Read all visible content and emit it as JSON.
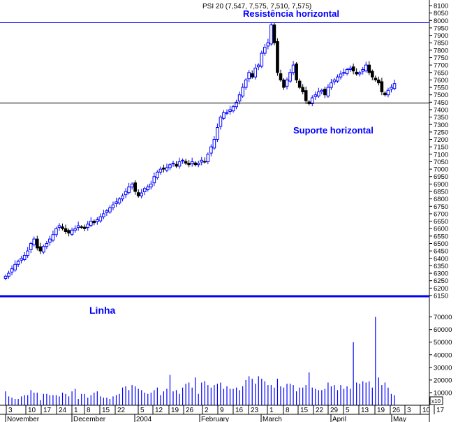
{
  "chart_data": {
    "type": "candlestick",
    "title": "PSI 20 (7,547, 7,575, 7,510, 7,575)",
    "annotations": [
      {
        "text": "Resistência horizontal",
        "value": 7985
      },
      {
        "text": "Suporte horizontal",
        "value": 7445
      },
      {
        "text": "Linha"
      }
    ],
    "price_axis": {
      "ylim": [
        6150,
        8100
      ],
      "ticks": [
        6150,
        6200,
        6250,
        6300,
        6350,
        6400,
        6450,
        6500,
        6550,
        6600,
        6650,
        6700,
        6750,
        6800,
        6850,
        6900,
        6950,
        7000,
        7050,
        7100,
        7150,
        7200,
        7250,
        7300,
        7350,
        7400,
        7450,
        7500,
        7550,
        7600,
        7650,
        7700,
        7750,
        7800,
        7850,
        7900,
        7950,
        8000,
        8050,
        8100
      ]
    },
    "volume_axis": {
      "ylim": [
        0,
        72000
      ],
      "ticks": [
        10000,
        20000,
        30000,
        40000,
        50000,
        60000,
        70000
      ],
      "multiplier_label": "x10"
    },
    "close": [
      6280,
      6300,
      6330,
      6360,
      6380,
      6400,
      6420,
      6450,
      6500,
      6530,
      6470,
      6450,
      6480,
      6500,
      6530,
      6560,
      6600,
      6620,
      6600,
      6580,
      6570,
      6590,
      6600,
      6620,
      6610,
      6600,
      6630,
      6650,
      6640,
      6660,
      6680,
      6700,
      6720,
      6740,
      6760,
      6780,
      6800,
      6820,
      6850,
      6880,
      6900,
      6850,
      6820,
      6840,
      6870,
      6880,
      6900,
      6950,
      6980,
      7000,
      7000,
      7010,
      7030,
      7040,
      7020,
      7050,
      7060,
      7040,
      7030,
      7050,
      7030,
      7040,
      7060,
      7050,
      7100,
      7150,
      7200,
      7280,
      7350,
      7380,
      7380,
      7400,
      7420,
      7450,
      7500,
      7550,
      7600,
      7650,
      7620,
      7680,
      7700,
      7780,
      7820,
      7850,
      7970,
      7850,
      7650,
      7600,
      7550,
      7600,
      7650,
      7700,
      7600,
      7550,
      7520,
      7460,
      7440,
      7480,
      7500,
      7520,
      7530,
      7500,
      7550,
      7580,
      7600,
      7620,
      7640,
      7650,
      7670,
      7680,
      7660,
      7640,
      7650,
      7670,
      7700,
      7650,
      7620,
      7600,
      7580,
      7520,
      7500,
      7530,
      7550,
      7575
    ],
    "volume": [
      11000,
      7000,
      6000,
      5000,
      5000,
      7000,
      8000,
      8000,
      12000,
      10000,
      10000,
      4000,
      9000,
      9000,
      8000,
      8000,
      8000,
      7000,
      10000,
      9000,
      7000,
      11000,
      13000,
      5000,
      9000,
      9000,
      6000,
      8000,
      10000,
      11000,
      7000,
      6000,
      6000,
      5000,
      7000,
      8000,
      9000,
      14000,
      15000,
      12000,
      16000,
      15000,
      13000,
      12000,
      10000,
      9000,
      10000,
      12000,
      14000,
      8000,
      11000,
      13000,
      24000,
      11000,
      12000,
      9000,
      14000,
      17000,
      18000,
      14000,
      22000,
      9000,
      18000,
      19000,
      16000,
      14000,
      16000,
      17000,
      18000,
      13000,
      15000,
      13000,
      13000,
      14000,
      12000,
      15000,
      20000,
      23000,
      21000,
      17000,
      23000,
      21000,
      19000,
      16000,
      16000,
      14000,
      21000,
      15000,
      14000,
      17000,
      17000,
      16000,
      11000,
      14000,
      14000,
      16000,
      26000,
      14000,
      13000,
      12000,
      12000,
      13000,
      18000,
      15000,
      16000,
      12000,
      16000,
      13000,
      15000,
      13000,
      50000,
      18000,
      17000,
      19000,
      18000,
      19000,
      14000,
      70000,
      22000,
      16000,
      18000,
      14000,
      9000,
      8000
    ],
    "x_tick_labels": [
      "3",
      "10",
      "17",
      "24",
      "1",
      "8",
      "15",
      "22",
      "5",
      "12",
      "19",
      "26",
      "2",
      "9",
      "16",
      "23",
      "1",
      "8",
      "15",
      "22",
      "29",
      "5",
      "13",
      "19",
      "26",
      "3",
      "10",
      "17"
    ],
    "month_labels": [
      "November",
      "December",
      "2004",
      "February",
      "March",
      "April",
      "May"
    ]
  },
  "colors": {
    "up": "#0000ff",
    "down": "#000000",
    "line": "#0000ff"
  }
}
